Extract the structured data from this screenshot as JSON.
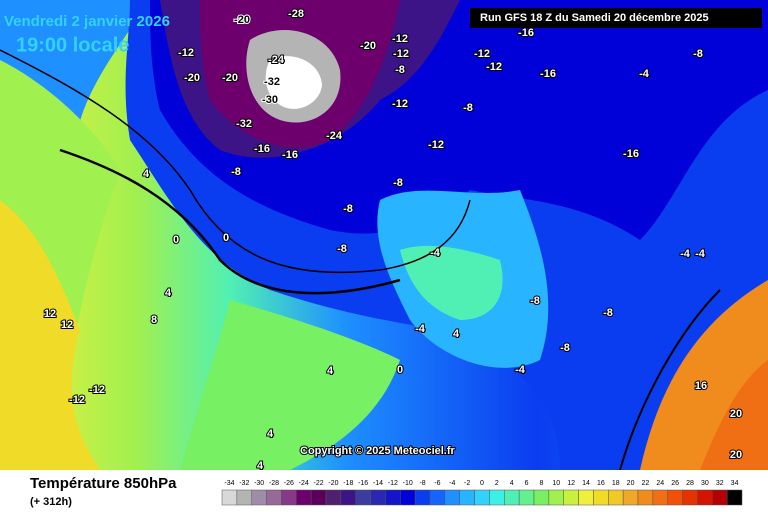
{
  "header": {
    "date": "Vendredi 2 janvier 2026",
    "time": "19:00 locale",
    "run": "Run GFS 18 Z du Samedi 20 décembre 2025"
  },
  "footer": {
    "title": "Température 850hPa",
    "lead": "(+ 312h)",
    "copyright": "Copyright © 2025 Meteociel.fr"
  },
  "scale": {
    "values": [
      -34,
      -32,
      -30,
      -28,
      -26,
      -24,
      -22,
      -20,
      -18,
      -16,
      -14,
      -12,
      -10,
      -8,
      -6,
      -4,
      -2,
      0,
      2,
      4,
      6,
      8,
      10,
      12,
      14,
      16,
      18,
      20,
      22,
      24,
      26,
      28,
      30,
      32,
      34
    ],
    "colors": [
      "#d8d8d8",
      "#b4b4b4",
      "#a08ca8",
      "#986898",
      "#883888",
      "#6e006e",
      "#5a005a",
      "#502070",
      "#3c1488",
      "#3c3ca0",
      "#2828b4",
      "#1414c8",
      "#0000d8",
      "#0a3cf0",
      "#1464ff",
      "#1e90ff",
      "#28b4ff",
      "#32d2ff",
      "#3cf0e6",
      "#50f0b4",
      "#64f08c",
      "#78f064",
      "#a0f050",
      "#c8f03c",
      "#f0f03c",
      "#f0dc28",
      "#f0c828",
      "#f0a828",
      "#f08c1e",
      "#f06e14",
      "#f0500a",
      "#e63200",
      "#d21400",
      "#b40000",
      "#000000"
    ]
  },
  "map_labels": [
    "-20",
    "-28",
    "-20",
    "-12",
    "-20",
    "-20",
    "-24",
    "-32",
    "-30",
    "-32",
    "-24",
    "-16",
    "-16",
    "-12",
    "-12",
    "-8",
    "-12",
    "-12",
    "-12",
    "-16",
    "-16",
    "-8",
    "-4",
    "-8",
    "-12",
    "-16",
    "-8",
    "-8",
    "-8",
    "-8",
    "-4",
    "-8",
    "-8",
    "-8",
    "-4",
    "4",
    "0",
    "0",
    "4",
    "8",
    "12",
    "12",
    "-12",
    "-12",
    "4",
    "4",
    "4",
    "-4",
    "-4",
    "16",
    "20",
    "20",
    "-4",
    "0",
    "4"
  ]
}
